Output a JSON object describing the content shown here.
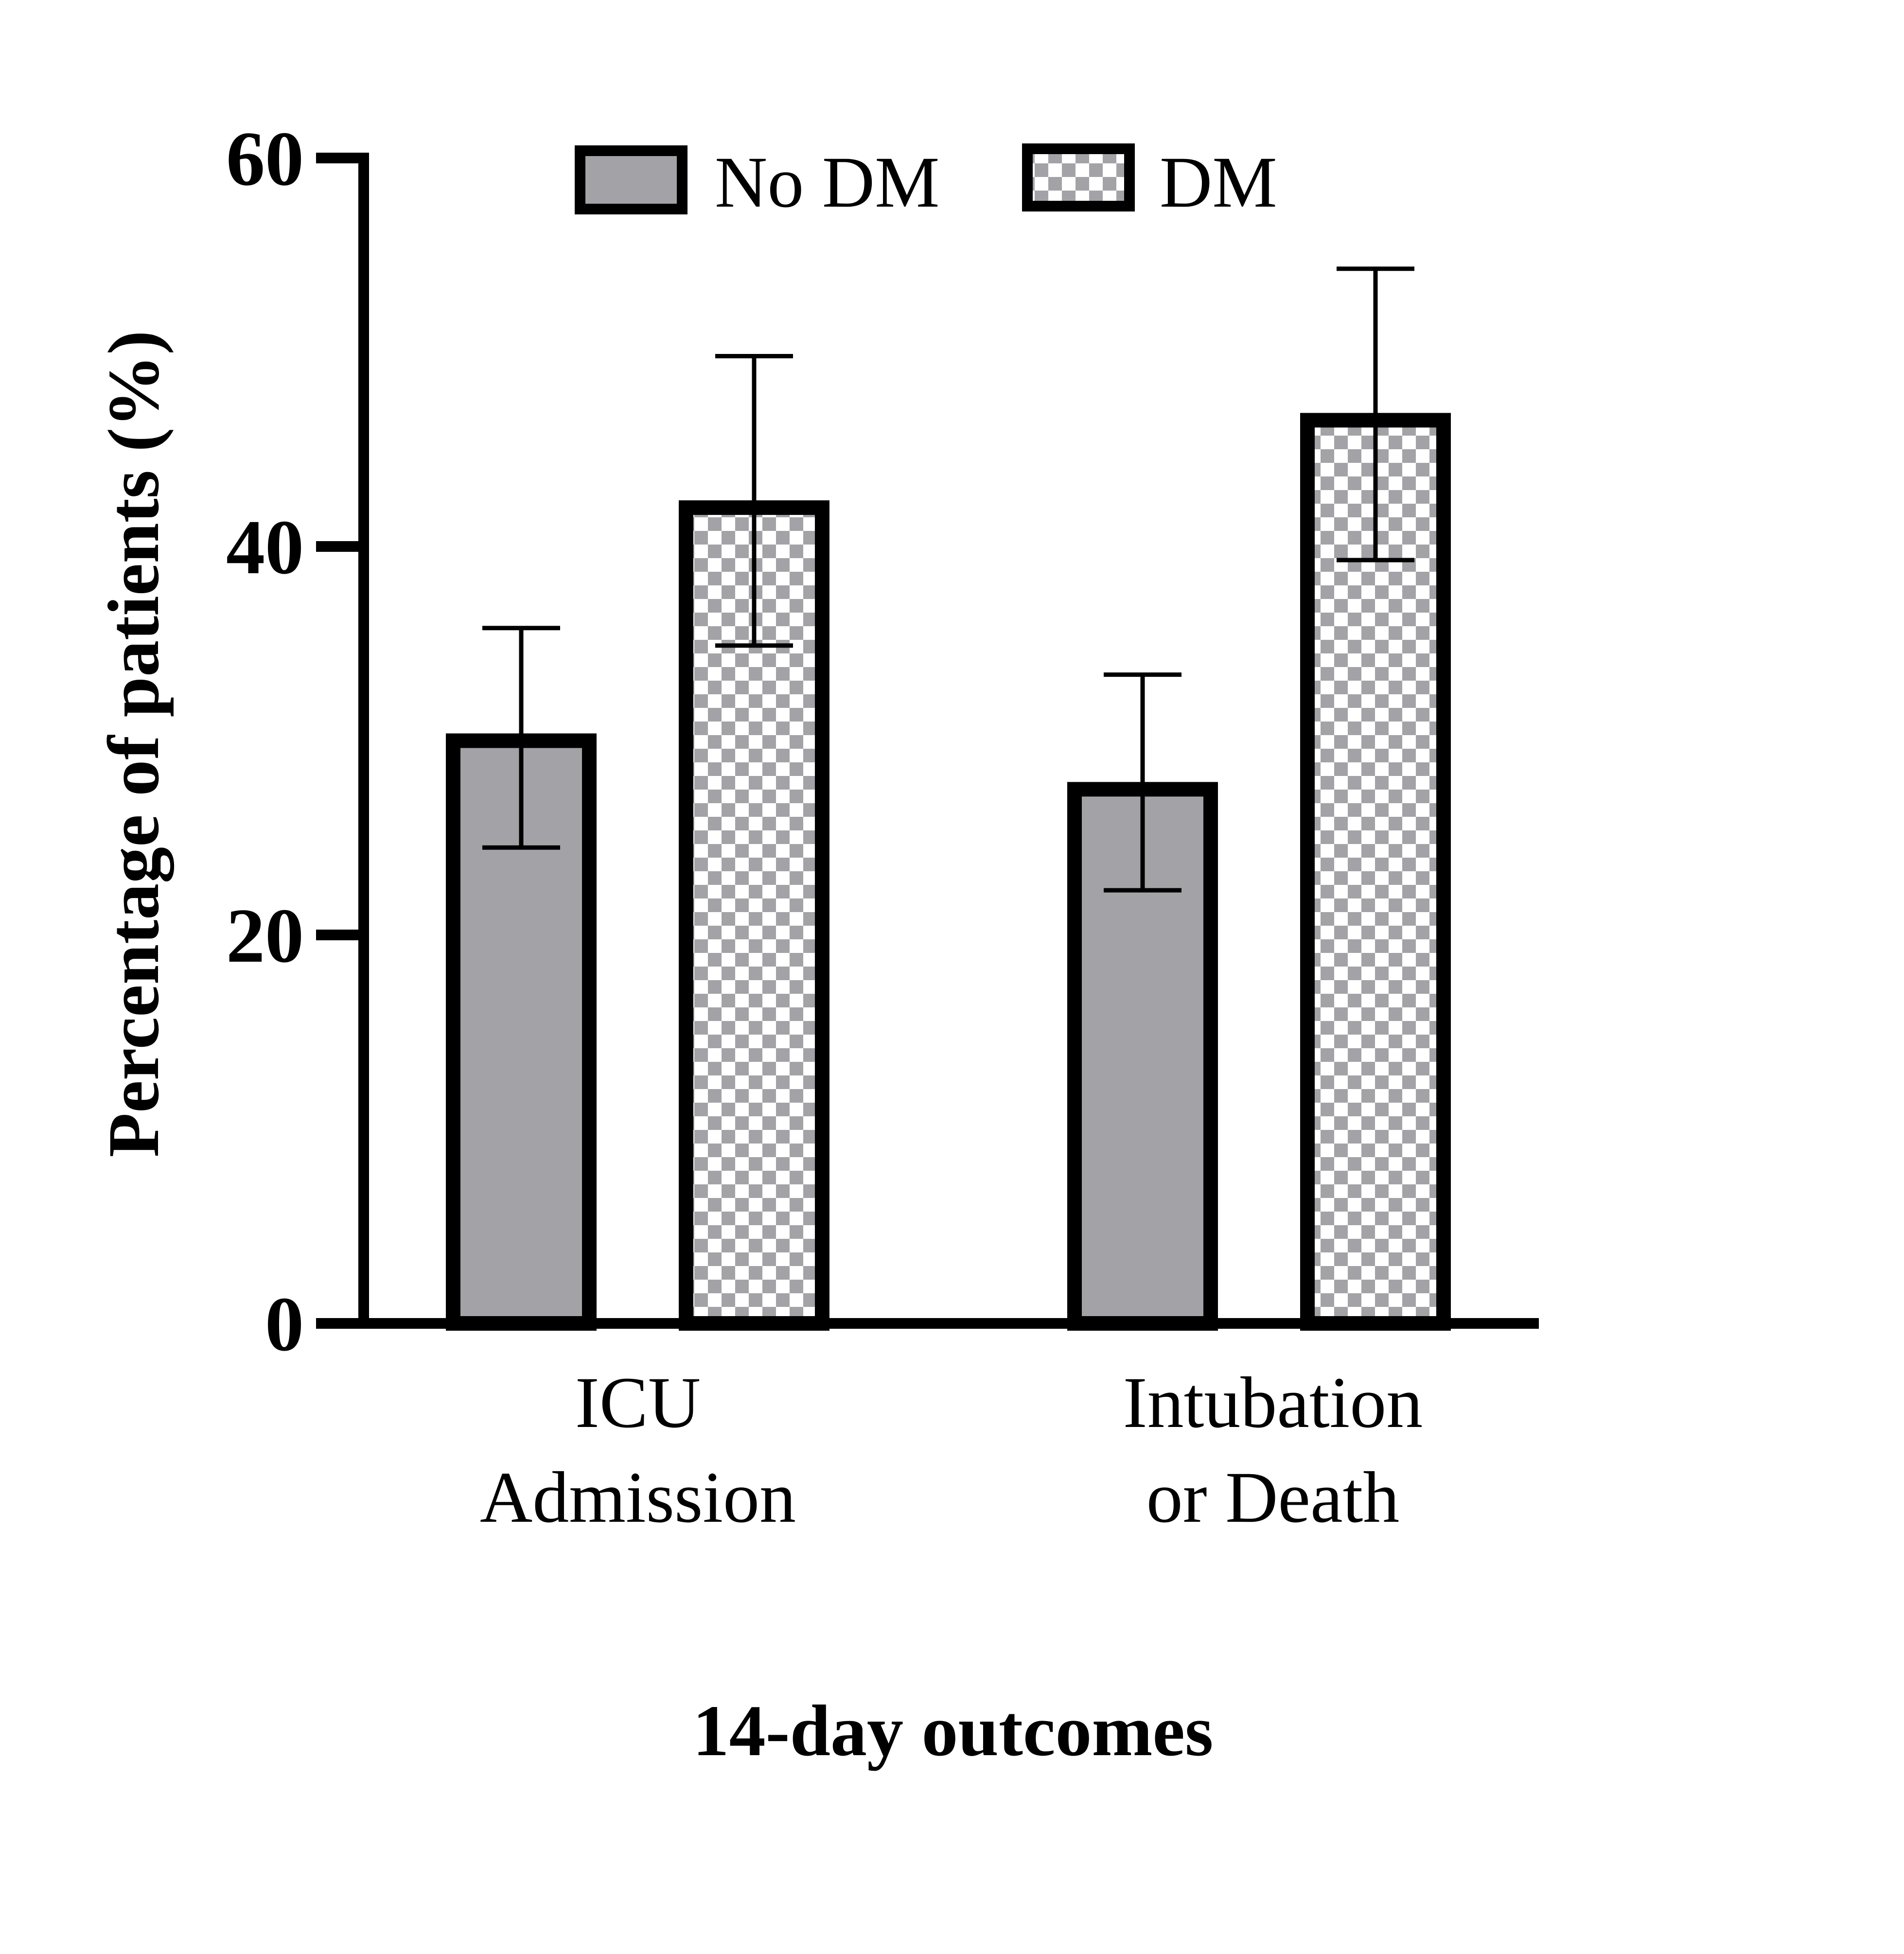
{
  "chart_data": {
    "type": "bar",
    "xlabel": "14-day outcomes",
    "ylabel": "Percentage of patients (%)",
    "ylim": [
      0,
      60
    ],
    "yticks": [
      "0",
      "20",
      "40",
      "60"
    ],
    "categories": [
      [
        "ICU",
        "Admission"
      ],
      [
        "Intubation",
        "or Death"
      ]
    ],
    "series": [
      {
        "name": "No DM",
        "fill": "solid",
        "color": "#a3a2a7",
        "values": [
          30,
          27.5
        ],
        "error_low": [
          24.5,
          22.3
        ],
        "error_high": [
          35.8,
          33.4
        ]
      },
      {
        "name": "DM",
        "fill": "checkered",
        "color": "#a3a2a7",
        "values": [
          42,
          46.5
        ],
        "error_low": [
          34.9,
          39.3
        ],
        "error_high": [
          49.8,
          54.3
        ]
      }
    ],
    "grid": false,
    "legend_position": "top-center",
    "colors": {
      "axis": "#000000",
      "bar_outline": "#000000",
      "checker_light": "#ffffff"
    }
  }
}
